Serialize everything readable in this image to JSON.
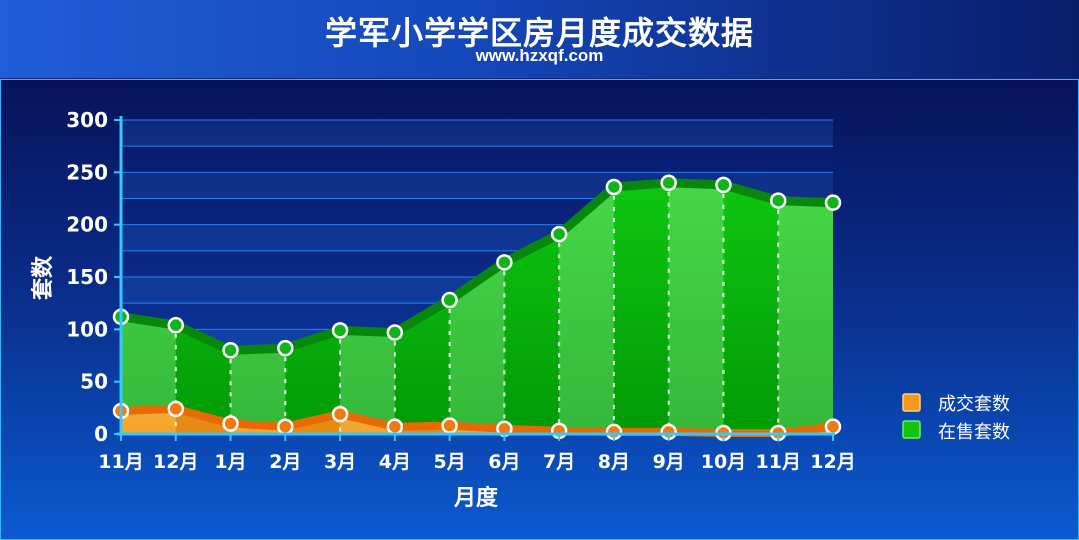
{
  "title": "学军小学学区房月度成交数据",
  "subtitle": "www.hzxqf.com",
  "chart_data": {
    "type": "area",
    "title": "学军小学学区房月度成交数据",
    "subtitle": "www.hzxqf.com",
    "xlabel": "月度",
    "ylabel": "套数",
    "categories": [
      "11月",
      "12月",
      "1月",
      "2月",
      "3月",
      "4月",
      "5月",
      "6月",
      "7月",
      "8月",
      "9月",
      "10月",
      "11月",
      "12月"
    ],
    "ylim": [
      0,
      300
    ],
    "yticks": [
      0,
      50,
      100,
      150,
      200,
      250,
      300
    ],
    "grid": true,
    "legend_position": "right",
    "series": [
      {
        "name": "成交套数",
        "color": "#f07a10",
        "values": [
          22,
          24,
          10,
          7,
          19,
          7,
          8,
          5,
          3,
          2,
          2,
          1,
          1,
          7
        ]
      },
      {
        "name": "在售套数",
        "color": "#0fbe12",
        "values": [
          112,
          104,
          80,
          82,
          99,
          97,
          128,
          164,
          191,
          236,
          240,
          238,
          223,
          221
        ]
      }
    ]
  }
}
